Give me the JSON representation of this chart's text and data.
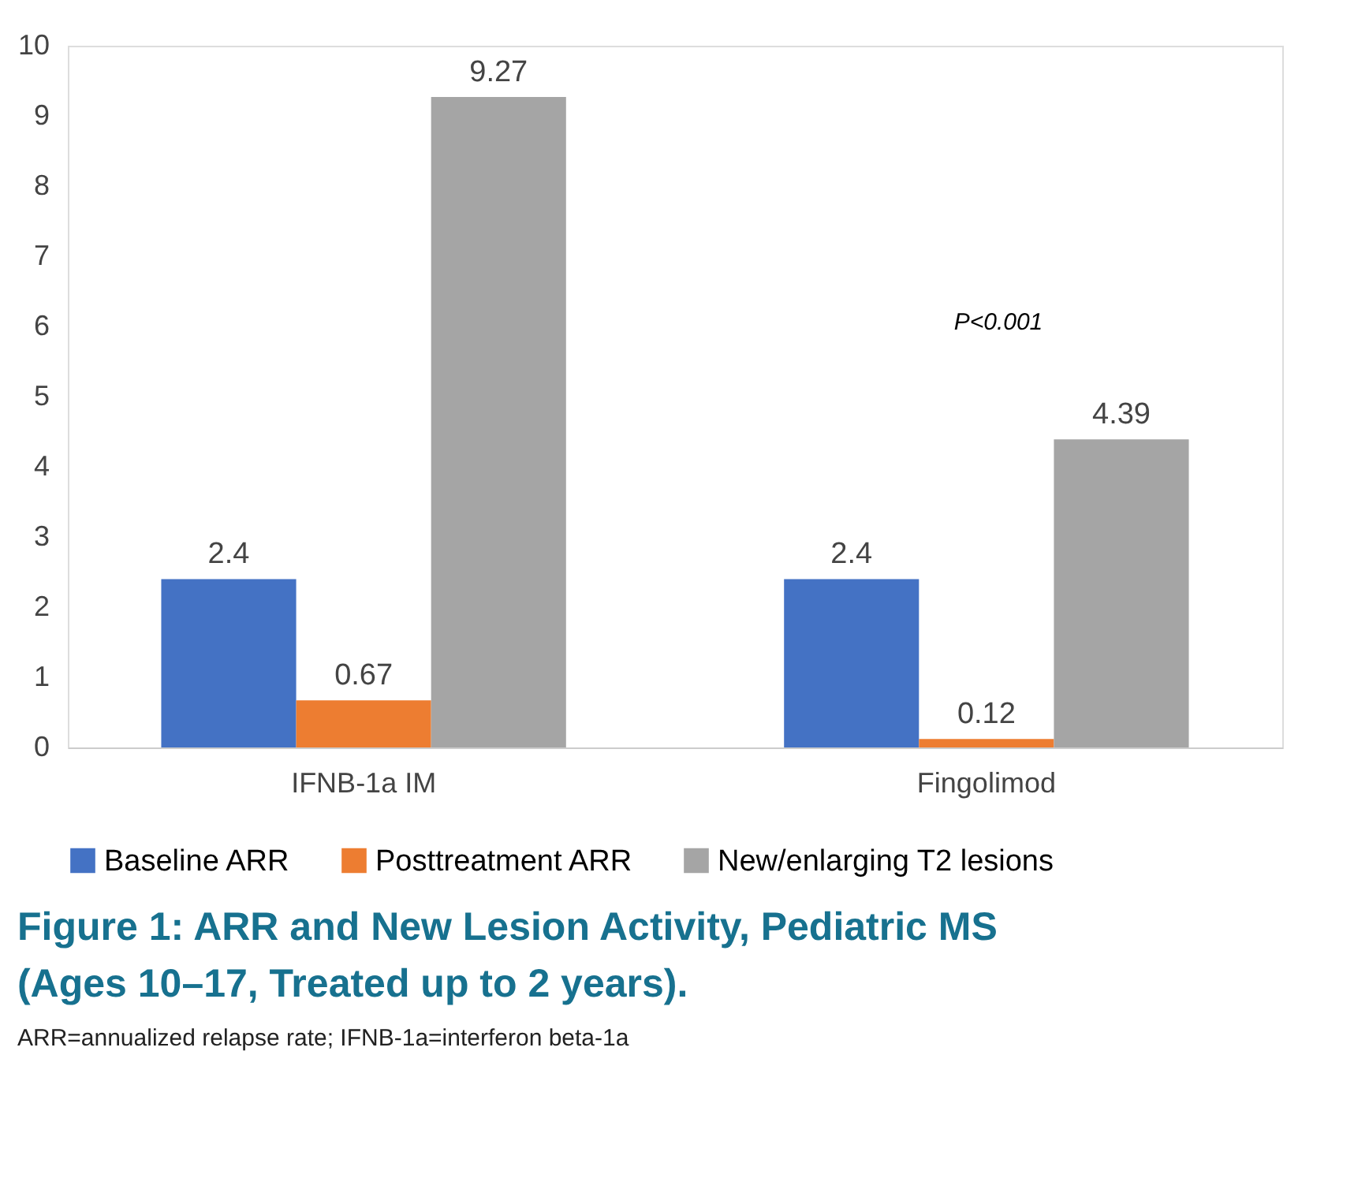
{
  "chart_data": {
    "type": "bar",
    "title": "Figure 1: ARR and New Lesion Activity, Pediatric MS (Ages 10–17, Treated up to 2 years).",
    "categories": [
      "IFNB-1a IM",
      "Fingolimod"
    ],
    "series": [
      {
        "name": "Baseline ARR",
        "color": "#4472c4",
        "values": [
          2.4,
          2.4
        ]
      },
      {
        "name": "Posttreatment ARR",
        "color": "#ed7d31",
        "values": [
          0.67,
          0.12
        ]
      },
      {
        "name": "New/enlarging T2 lesions",
        "color": "#a5a5a5",
        "values": [
          9.27,
          4.39
        ]
      }
    ],
    "ylim": [
      0,
      10
    ],
    "yticks": [
      0,
      1,
      2,
      3,
      4,
      5,
      6,
      7,
      8,
      9,
      10
    ],
    "grid": false,
    "legend": "bottom",
    "data_labels": true,
    "annotations": [
      "P<0.001",
      "ARR=annualized relapse rate; IFNB-1a=interferon beta-1a"
    ]
  }
}
